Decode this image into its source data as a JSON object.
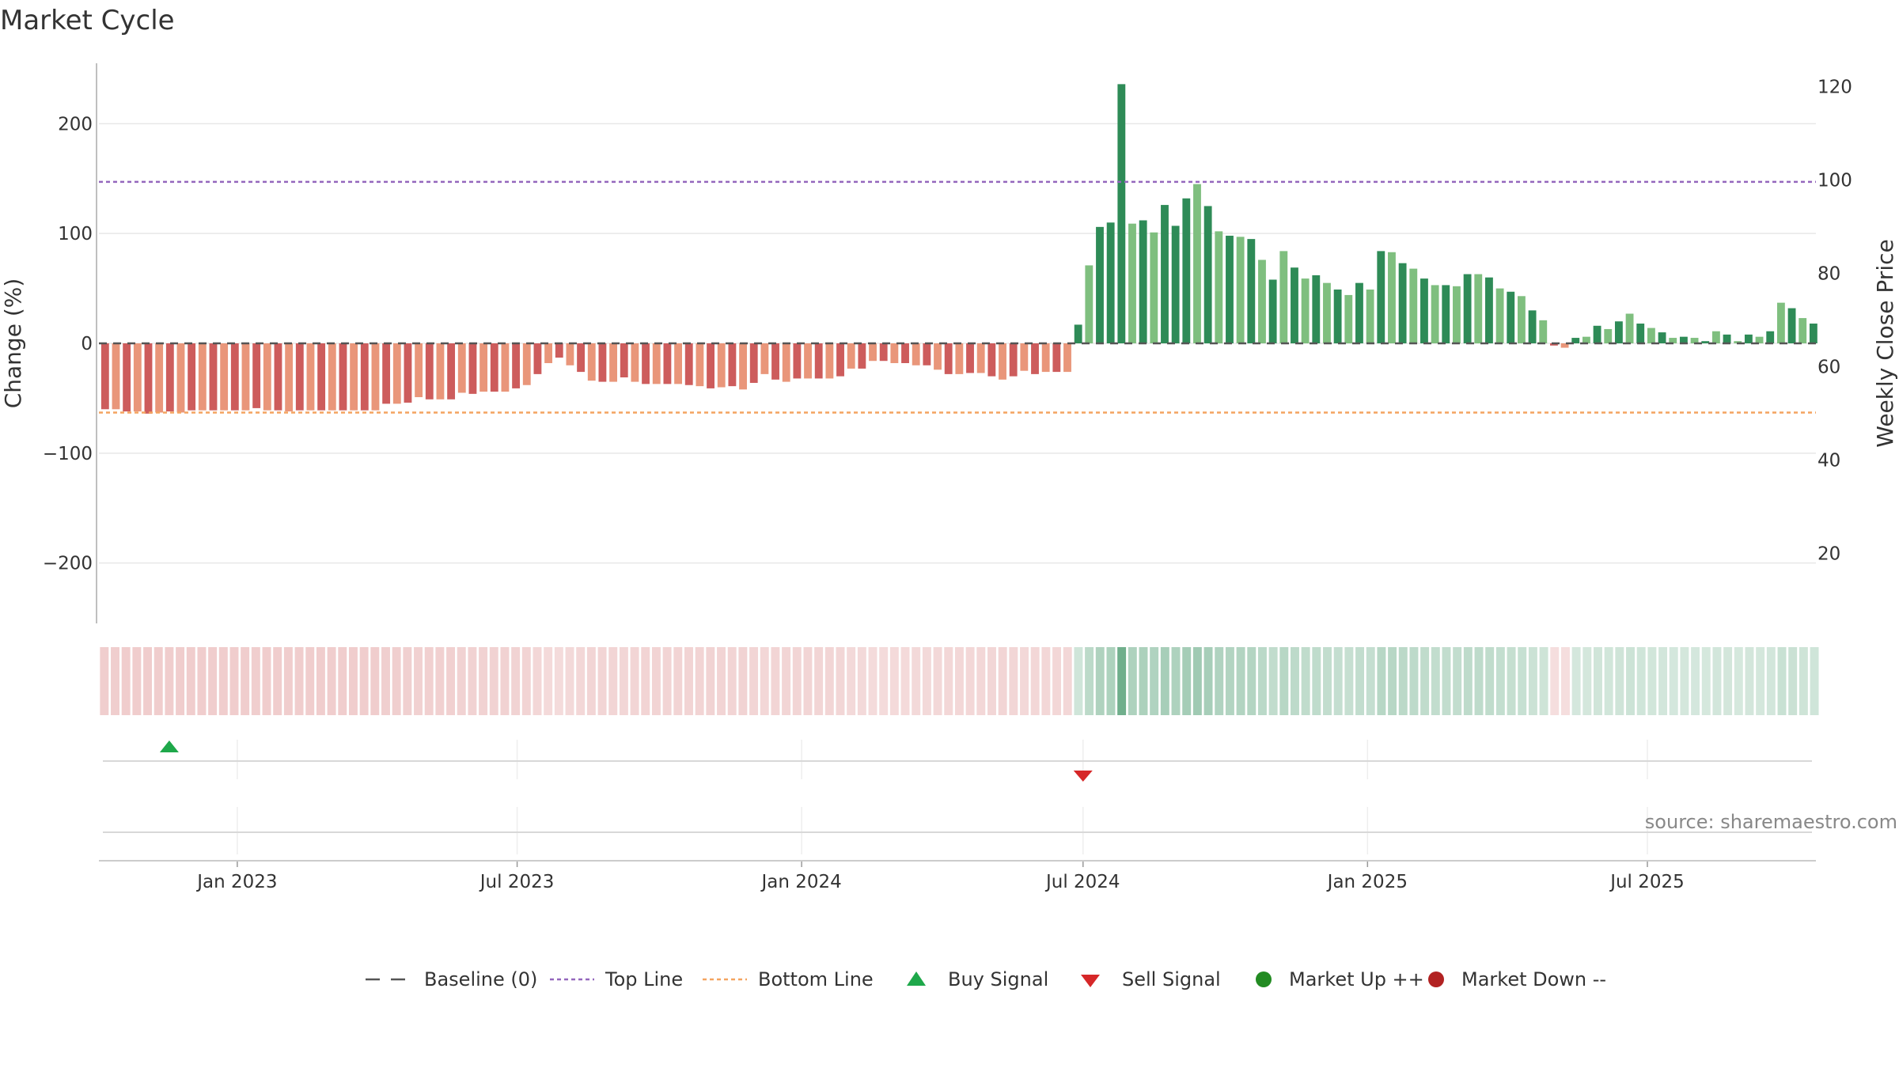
{
  "title": "Market Cycle",
  "source": "source: sharemaestro.com",
  "colors": {
    "pos_dark": "#2e8b57",
    "pos_light": "#7fbf7f",
    "neg_dark": "#cd5c5c",
    "neg_light": "#e9967a",
    "top_line": "#9467bd",
    "bottom_line": "#f4a460",
    "baseline": "#555555",
    "buy": "#1ea84a",
    "sell": "#d62728",
    "market_up": "#228b22",
    "market_down": "#b22222"
  },
  "chart_data": {
    "type": "bar",
    "title": "Market Cycle",
    "ylabel": "Change (%)",
    "y2label": "Weekly Close Price",
    "ylim": [
      -255,
      255
    ],
    "y2lim": [
      5,
      125
    ],
    "yticks": [
      200,
      100,
      0,
      -100,
      -200
    ],
    "ytick_labels": [
      "200",
      "100",
      "0",
      "−100",
      "−200"
    ],
    "y2ticks": [
      120,
      100,
      80,
      60,
      40,
      20
    ],
    "top_line": 147,
    "bottom_line": -63,
    "x_start": "2022-10-07",
    "x_step_days": 7,
    "x_end": "2025-09-30",
    "xticks": [
      {
        "date": "2023-01-01",
        "label": "Jan 2023"
      },
      {
        "date": "2023-07-01",
        "label": "Jul 2023"
      },
      {
        "date": "2024-01-01",
        "label": "Jan 2024"
      },
      {
        "date": "2024-07-01",
        "label": "Jul 2024"
      },
      {
        "date": "2025-01-01",
        "label": "Jan 2025"
      },
      {
        "date": "2025-07-01",
        "label": "Jul 2025"
      }
    ],
    "values": [
      -60,
      -60,
      -62,
      -62,
      -64,
      -63,
      -62,
      -63,
      -61,
      -61,
      -61,
      -61,
      -61,
      -61,
      -59,
      -61,
      -61,
      -62,
      -61,
      -61,
      -61,
      -61,
      -61,
      -61,
      -61,
      -61,
      -55,
      -55,
      -54,
      -49,
      -51,
      -51,
      -51,
      -45,
      -46,
      -44,
      -44,
      -44,
      -41,
      -38,
      -28,
      -18,
      -13,
      -20,
      -26,
      -34,
      -35,
      -35,
      -31,
      -35,
      -37,
      -37,
      -37,
      -37,
      -38,
      -39,
      -41,
      -40,
      -39,
      -42,
      -36,
      -28,
      -33,
      -35,
      -32,
      -32,
      -32,
      -32,
      -30,
      -23,
      -23,
      -16,
      -16,
      -18,
      -18,
      -20,
      -20,
      -24,
      -28,
      -28,
      -27,
      -27,
      -30,
      -33,
      -30,
      -25,
      -28,
      -26,
      -26,
      -26,
      17,
      71,
      106,
      110,
      236,
      109,
      112,
      101,
      126,
      107,
      132,
      145,
      125,
      102,
      98,
      97,
      95,
      76,
      58,
      84,
      69,
      59,
      62,
      55,
      49,
      44,
      55,
      49,
      84,
      83,
      73,
      68,
      59,
      53,
      53,
      52,
      63,
      63,
      60,
      50,
      47,
      43,
      30,
      21,
      -2,
      -4,
      5,
      6,
      16,
      13,
      20,
      27,
      18,
      14,
      10,
      5,
      6,
      5,
      2,
      11,
      8,
      2,
      8,
      6,
      11,
      37,
      32,
      23,
      18
    ],
    "legend": [
      {
        "label": "Baseline (0)",
        "kind": "dash-line"
      },
      {
        "label": "Top Line",
        "kind": "dot-line-top"
      },
      {
        "label": "Bottom Line",
        "kind": "dot-line-bottom"
      },
      {
        "label": "Buy Signal",
        "kind": "triangle-up"
      },
      {
        "label": "Sell Signal",
        "kind": "triangle-down"
      },
      {
        "label": "Market Up ++",
        "kind": "circle-up"
      },
      {
        "label": "Market Down --",
        "kind": "circle-down"
      }
    ],
    "buy_signals": [
      "2022-11-18"
    ],
    "sell_signals": [
      "2024-07-01"
    ]
  }
}
